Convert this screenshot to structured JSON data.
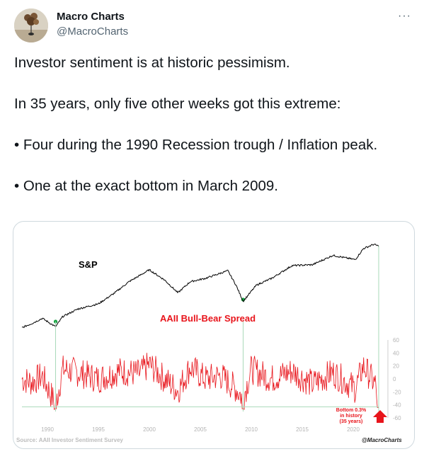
{
  "author": {
    "name": "Macro Charts",
    "handle": "@MacroCharts",
    "avatar_icon": "balloon-sculpture-avatar"
  },
  "more_icon": "more-options-icon",
  "tweet": {
    "lines": [
      "Investor sentiment is at historic pessimism.",
      "In 35 years, only five other weeks got this extreme:",
      "• Four during the 1990 Recession trough / Inflation peak.",
      "• One at the exact bottom in March 2009."
    ]
  },
  "chart_data": {
    "type": "line",
    "sp_label": "S&P",
    "spread_label": "AAII Bull-Bear Spread",
    "annotation": "Bottom 0.3%\nin history\n(35 years)",
    "source": "Source: AAII Investor Sentiment Survey",
    "watermark": "@MacroCharts",
    "x_ticks": [
      "1990",
      "1995",
      "2000",
      "2005",
      "2010",
      "2015",
      "2020"
    ],
    "y_ticks": [
      "60",
      "40",
      "20",
      "0",
      "-20",
      "-40",
      "-60"
    ],
    "xlim": [
      1987.5,
      2022.5
    ],
    "ylim": [
      -60,
      60
    ],
    "threshold": -43,
    "extreme_weeks": [
      1990.8,
      2009.2
    ],
    "colors": {
      "sp": "#000000",
      "spread": "#e8141b",
      "marker": "#17a643",
      "threshold": "#a9d9b9",
      "arrow": "#e8141b"
    },
    "series": [
      {
        "name": "S&P",
        "points": [
          [
            1987.5,
            0.02
          ],
          [
            1988.5,
            0.07
          ],
          [
            1989.5,
            0.13
          ],
          [
            1990.8,
            0.03
          ],
          [
            1991.5,
            0.15
          ],
          [
            1993,
            0.24
          ],
          [
            1995,
            0.3
          ],
          [
            1996.5,
            0.42
          ],
          [
            1998,
            0.56
          ],
          [
            1999,
            0.63
          ],
          [
            2000,
            0.7
          ],
          [
            2001.5,
            0.58
          ],
          [
            2002.8,
            0.43
          ],
          [
            2004,
            0.56
          ],
          [
            2005.5,
            0.6
          ],
          [
            2007.7,
            0.69
          ],
          [
            2008.5,
            0.52
          ],
          [
            2009.2,
            0.33
          ],
          [
            2010.5,
            0.52
          ],
          [
            2012,
            0.6
          ],
          [
            2014,
            0.75
          ],
          [
            2016,
            0.76
          ],
          [
            2018,
            0.87
          ],
          [
            2020.2,
            0.82
          ],
          [
            2021,
            0.95
          ],
          [
            2022.0,
            1.0
          ],
          [
            2022.5,
            0.98
          ]
        ]
      },
      {
        "name": "AAII Bull-Bear Spread",
        "anchors": [
          [
            1987.5,
            0
          ],
          [
            1988.5,
            -5
          ],
          [
            1989.5,
            5
          ],
          [
            1990.8,
            -40
          ],
          [
            1991.5,
            15
          ],
          [
            1993,
            10
          ],
          [
            1995,
            0
          ],
          [
            1997,
            12
          ],
          [
            1999,
            8
          ],
          [
            2000,
            22
          ],
          [
            2001.5,
            0
          ],
          [
            2002.8,
            -18
          ],
          [
            2004,
            18
          ],
          [
            2005.5,
            0
          ],
          [
            2007,
            5
          ],
          [
            2008.5,
            -15
          ],
          [
            2009.2,
            -30
          ],
          [
            2010,
            15
          ],
          [
            2012,
            0
          ],
          [
            2014,
            12
          ],
          [
            2016,
            -8
          ],
          [
            2018,
            10
          ],
          [
            2020.2,
            -15
          ],
          [
            2021,
            20
          ],
          [
            2022.2,
            -10
          ],
          [
            2022.5,
            -43
          ]
        ]
      }
    ]
  }
}
